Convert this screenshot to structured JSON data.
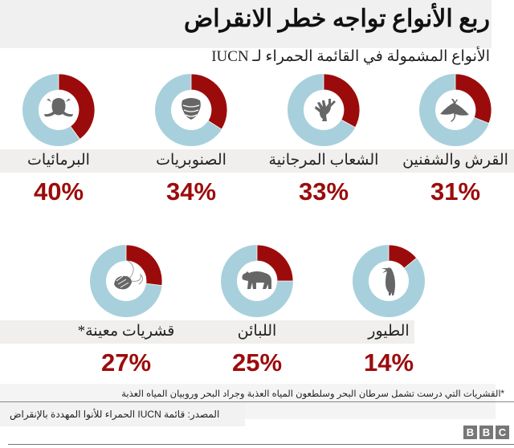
{
  "header": {
    "title": "ربع الأنواع تواجه خطر الانقراض",
    "subtitle": "الأنواع المشمولة في القائمة الحمراء لـ IUCN"
  },
  "colors": {
    "threatened": "#9c0b0b",
    "remainder": "#a8d0dc",
    "icon": "#666666",
    "percent_text": "#9c0b0b",
    "label_band": "#f0efed"
  },
  "items": [
    {
      "label": "البرمائيات",
      "percent": "40%",
      "value": 40,
      "icon": "frog-icon"
    },
    {
      "label": "الصنوبريات",
      "percent": "34%",
      "value": 34,
      "icon": "pine-cone-icon"
    },
    {
      "label": "الشعاب المرجانية",
      "percent": "33%",
      "value": 33,
      "icon": "coral-icon"
    },
    {
      "label": "القرش والشفنين",
      "percent": "31%",
      "value": 31,
      "icon": "manta-ray-icon"
    },
    {
      "label": "قشريات معينة*",
      "percent": "27%",
      "value": 27,
      "icon": "shrimp-icon"
    },
    {
      "label": "اللبائن",
      "percent": "25%",
      "value": 25,
      "icon": "bear-icon"
    },
    {
      "label": "الطيور",
      "percent": "14%",
      "value": 14,
      "icon": "bird-icon"
    }
  ],
  "footer": {
    "footnote": "*القشريات التي درست تشمل سرطان البحر وسلطعون المياه العذبة وجراد البحر وروبيان المياه العذبة",
    "source": "المصدر: قائمة IUCN الحمراء للأنوا المهددة بالإنقراض",
    "logo": [
      "B",
      "B",
      "C"
    ]
  },
  "chart_data": {
    "type": "pie",
    "subtype": "donut-grid",
    "title": "ربع الأنواع تواجه خطر الانقراض",
    "subtitle": "الأنواع المشمولة في القائمة الحمراء لـ IUCN",
    "categories": [
      "البرمائيات",
      "الصنوبريات",
      "الشعاب المرجانية",
      "القرش والشفنين",
      "قشريات معينة*",
      "اللبائن",
      "الطيور"
    ],
    "values": [
      40,
      34,
      33,
      31,
      27,
      25,
      14
    ],
    "unit": "%",
    "series": [
      {
        "name": "threatened",
        "color": "#9c0b0b",
        "values": [
          40,
          34,
          33,
          31,
          27,
          25,
          14
        ]
      },
      {
        "name": "not threatened",
        "color": "#a8d0dc",
        "values": [
          60,
          66,
          67,
          69,
          73,
          75,
          86
        ]
      }
    ],
    "annotations": [
      "*القشريات التي درست تشمل سرطان البحر وسلطعون المياه العذبة وجراد البحر وروبيان المياه العذبة"
    ],
    "source": "المصدر: قائمة IUCN الحمراء للأنوا المهددة بالإنقراض"
  }
}
